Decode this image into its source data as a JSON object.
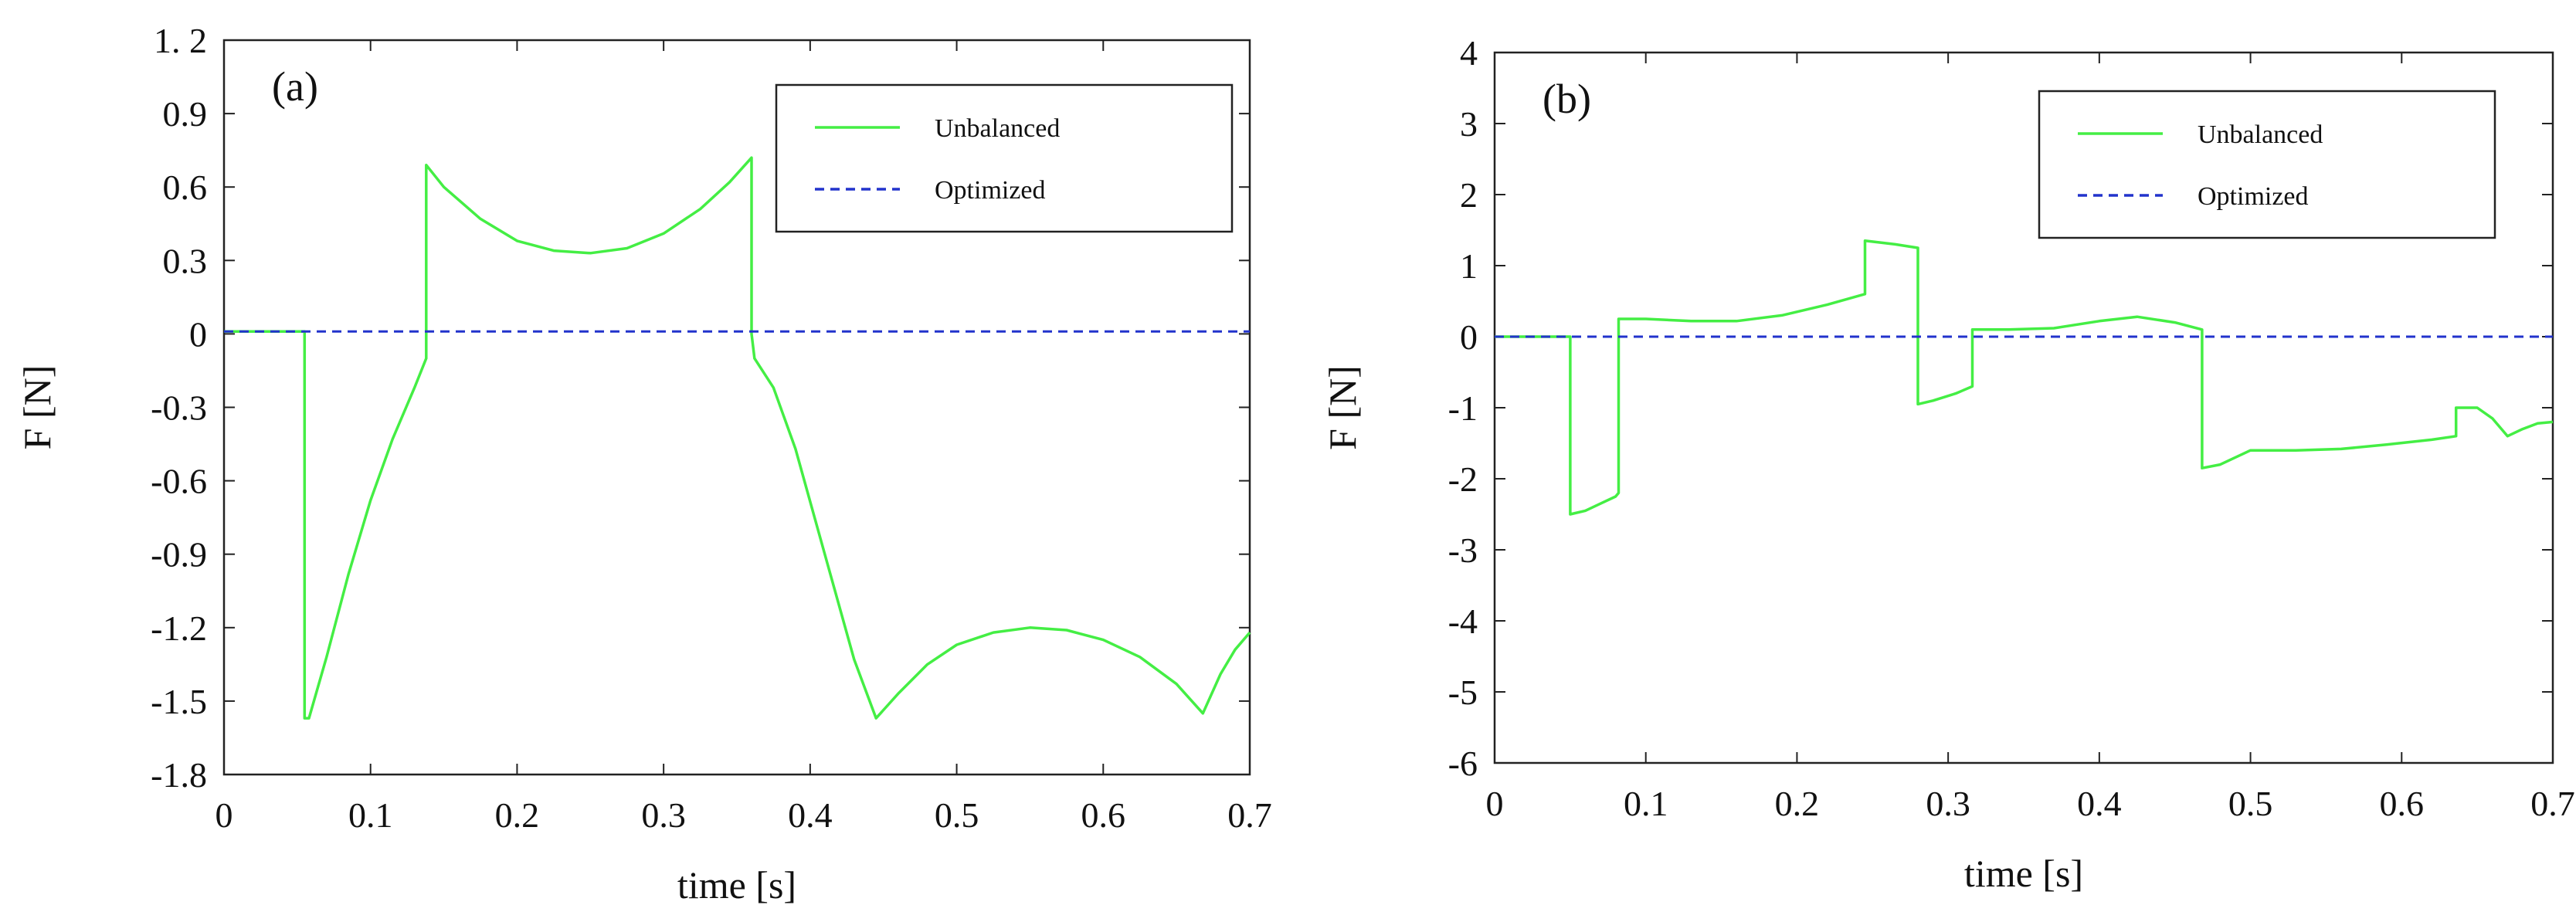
{
  "chart_data": [
    {
      "type": "line",
      "panel_label": "(a)",
      "xlabel": "time [s]",
      "ylabel": "F [N]",
      "xlim": [
        0,
        0.7
      ],
      "ylim": [
        -1.8,
        1.2
      ],
      "xticks": [
        0,
        0.1,
        0.2,
        0.3,
        0.4,
        0.5,
        0.6,
        0.7
      ],
      "xtick_labels": [
        "0",
        "0.1",
        "0.2",
        "0.3",
        "0.4",
        "0.5",
        "0.6",
        "0.7"
      ],
      "yticks": [
        1.2,
        0.9,
        0.6,
        0.3,
        0,
        -0.3,
        -0.6,
        -0.9,
        -1.2,
        -1.5,
        -1.8
      ],
      "ytick_labels": [
        "1. 2",
        "0.9",
        "0.6",
        "0.3",
        "0",
        "-0.3",
        "-0.6",
        "-0.9",
        "-1.2",
        "-1.5",
        "-1.8"
      ],
      "legend": "top-right",
      "series": [
        {
          "name": "Unbalanced",
          "color": "#44ee44",
          "dash": "solid",
          "x": [
            0,
            0.055,
            0.055,
            0.058,
            0.07,
            0.085,
            0.1,
            0.115,
            0.13,
            0.138,
            0.138,
            0.15,
            0.175,
            0.2,
            0.225,
            0.25,
            0.275,
            0.3,
            0.325,
            0.345,
            0.36,
            0.36,
            0.362,
            0.375,
            0.39,
            0.41,
            0.43,
            0.445,
            0.46,
            0.48,
            0.5,
            0.525,
            0.55,
            0.575,
            0.6,
            0.625,
            0.65,
            0.668,
            0.68,
            0.69,
            0.7
          ],
          "y": [
            0.01,
            0.01,
            -1.57,
            -1.57,
            -1.32,
            -0.98,
            -0.68,
            -0.43,
            -0.22,
            -0.1,
            0.69,
            0.6,
            0.47,
            0.38,
            0.34,
            0.33,
            0.35,
            0.41,
            0.51,
            0.62,
            0.72,
            0.0,
            -0.1,
            -0.22,
            -0.47,
            -0.9,
            -1.33,
            -1.57,
            -1.47,
            -1.35,
            -1.27,
            -1.22,
            -1.2,
            -1.21,
            -1.25,
            -1.32,
            -1.43,
            -1.55,
            -1.39,
            -1.29,
            -1.22
          ]
        },
        {
          "name": "Optimized",
          "color": "#2233cc",
          "dash": "dashed",
          "x": [
            0,
            0.7
          ],
          "y": [
            0.01,
            0.01
          ]
        }
      ]
    },
    {
      "type": "line",
      "panel_label": "(b)",
      "xlabel": "time [s]",
      "ylabel": "F [N]",
      "xlim": [
        0,
        0.7
      ],
      "ylim": [
        -6,
        4
      ],
      "xticks": [
        0,
        0.1,
        0.2,
        0.3,
        0.4,
        0.5,
        0.6,
        0.7
      ],
      "xtick_labels": [
        "0",
        "0.1",
        "0.2",
        "0.3",
        "0.4",
        "0.5",
        "0.6",
        "0.7"
      ],
      "yticks": [
        4,
        3,
        2,
        1,
        0,
        -1,
        -2,
        -3,
        -4,
        -5,
        -6
      ],
      "ytick_labels": [
        "4",
        "3",
        "2",
        "1",
        "0",
        "-1",
        "-2",
        "-3",
        "-4",
        "-5",
        "-6"
      ],
      "legend": "top-right",
      "series": [
        {
          "name": "Unbalanced",
          "color": "#44ee44",
          "dash": "solid",
          "x": [
            0,
            0.05,
            0.05,
            0.06,
            0.07,
            0.08,
            0.082,
            0.082,
            0.1,
            0.13,
            0.16,
            0.19,
            0.22,
            0.245,
            0.245,
            0.265,
            0.28,
            0.28,
            0.29,
            0.305,
            0.316,
            0.316,
            0.34,
            0.37,
            0.4,
            0.425,
            0.45,
            0.468,
            0.468,
            0.48,
            0.5,
            0.53,
            0.56,
            0.59,
            0.62,
            0.636,
            0.636,
            0.65,
            0.66,
            0.67,
            0.68,
            0.69,
            0.7
          ],
          "y": [
            0,
            0,
            -2.5,
            -2.45,
            -2.35,
            -2.25,
            -2.2,
            0.25,
            0.25,
            0.22,
            0.22,
            0.3,
            0.45,
            0.6,
            1.35,
            1.3,
            1.25,
            -0.95,
            -0.9,
            -0.8,
            -0.7,
            0.1,
            0.1,
            0.12,
            0.22,
            0.28,
            0.2,
            0.1,
            -1.85,
            -1.8,
            -1.6,
            -1.6,
            -1.58,
            -1.52,
            -1.45,
            -1.4,
            -1.0,
            -1.0,
            -1.15,
            -1.4,
            -1.3,
            -1.22,
            -1.2
          ]
        },
        {
          "name": "Optimized",
          "color": "#2233cc",
          "dash": "dashed",
          "x": [
            0,
            0.7
          ],
          "y": [
            0,
            0
          ]
        }
      ]
    }
  ]
}
